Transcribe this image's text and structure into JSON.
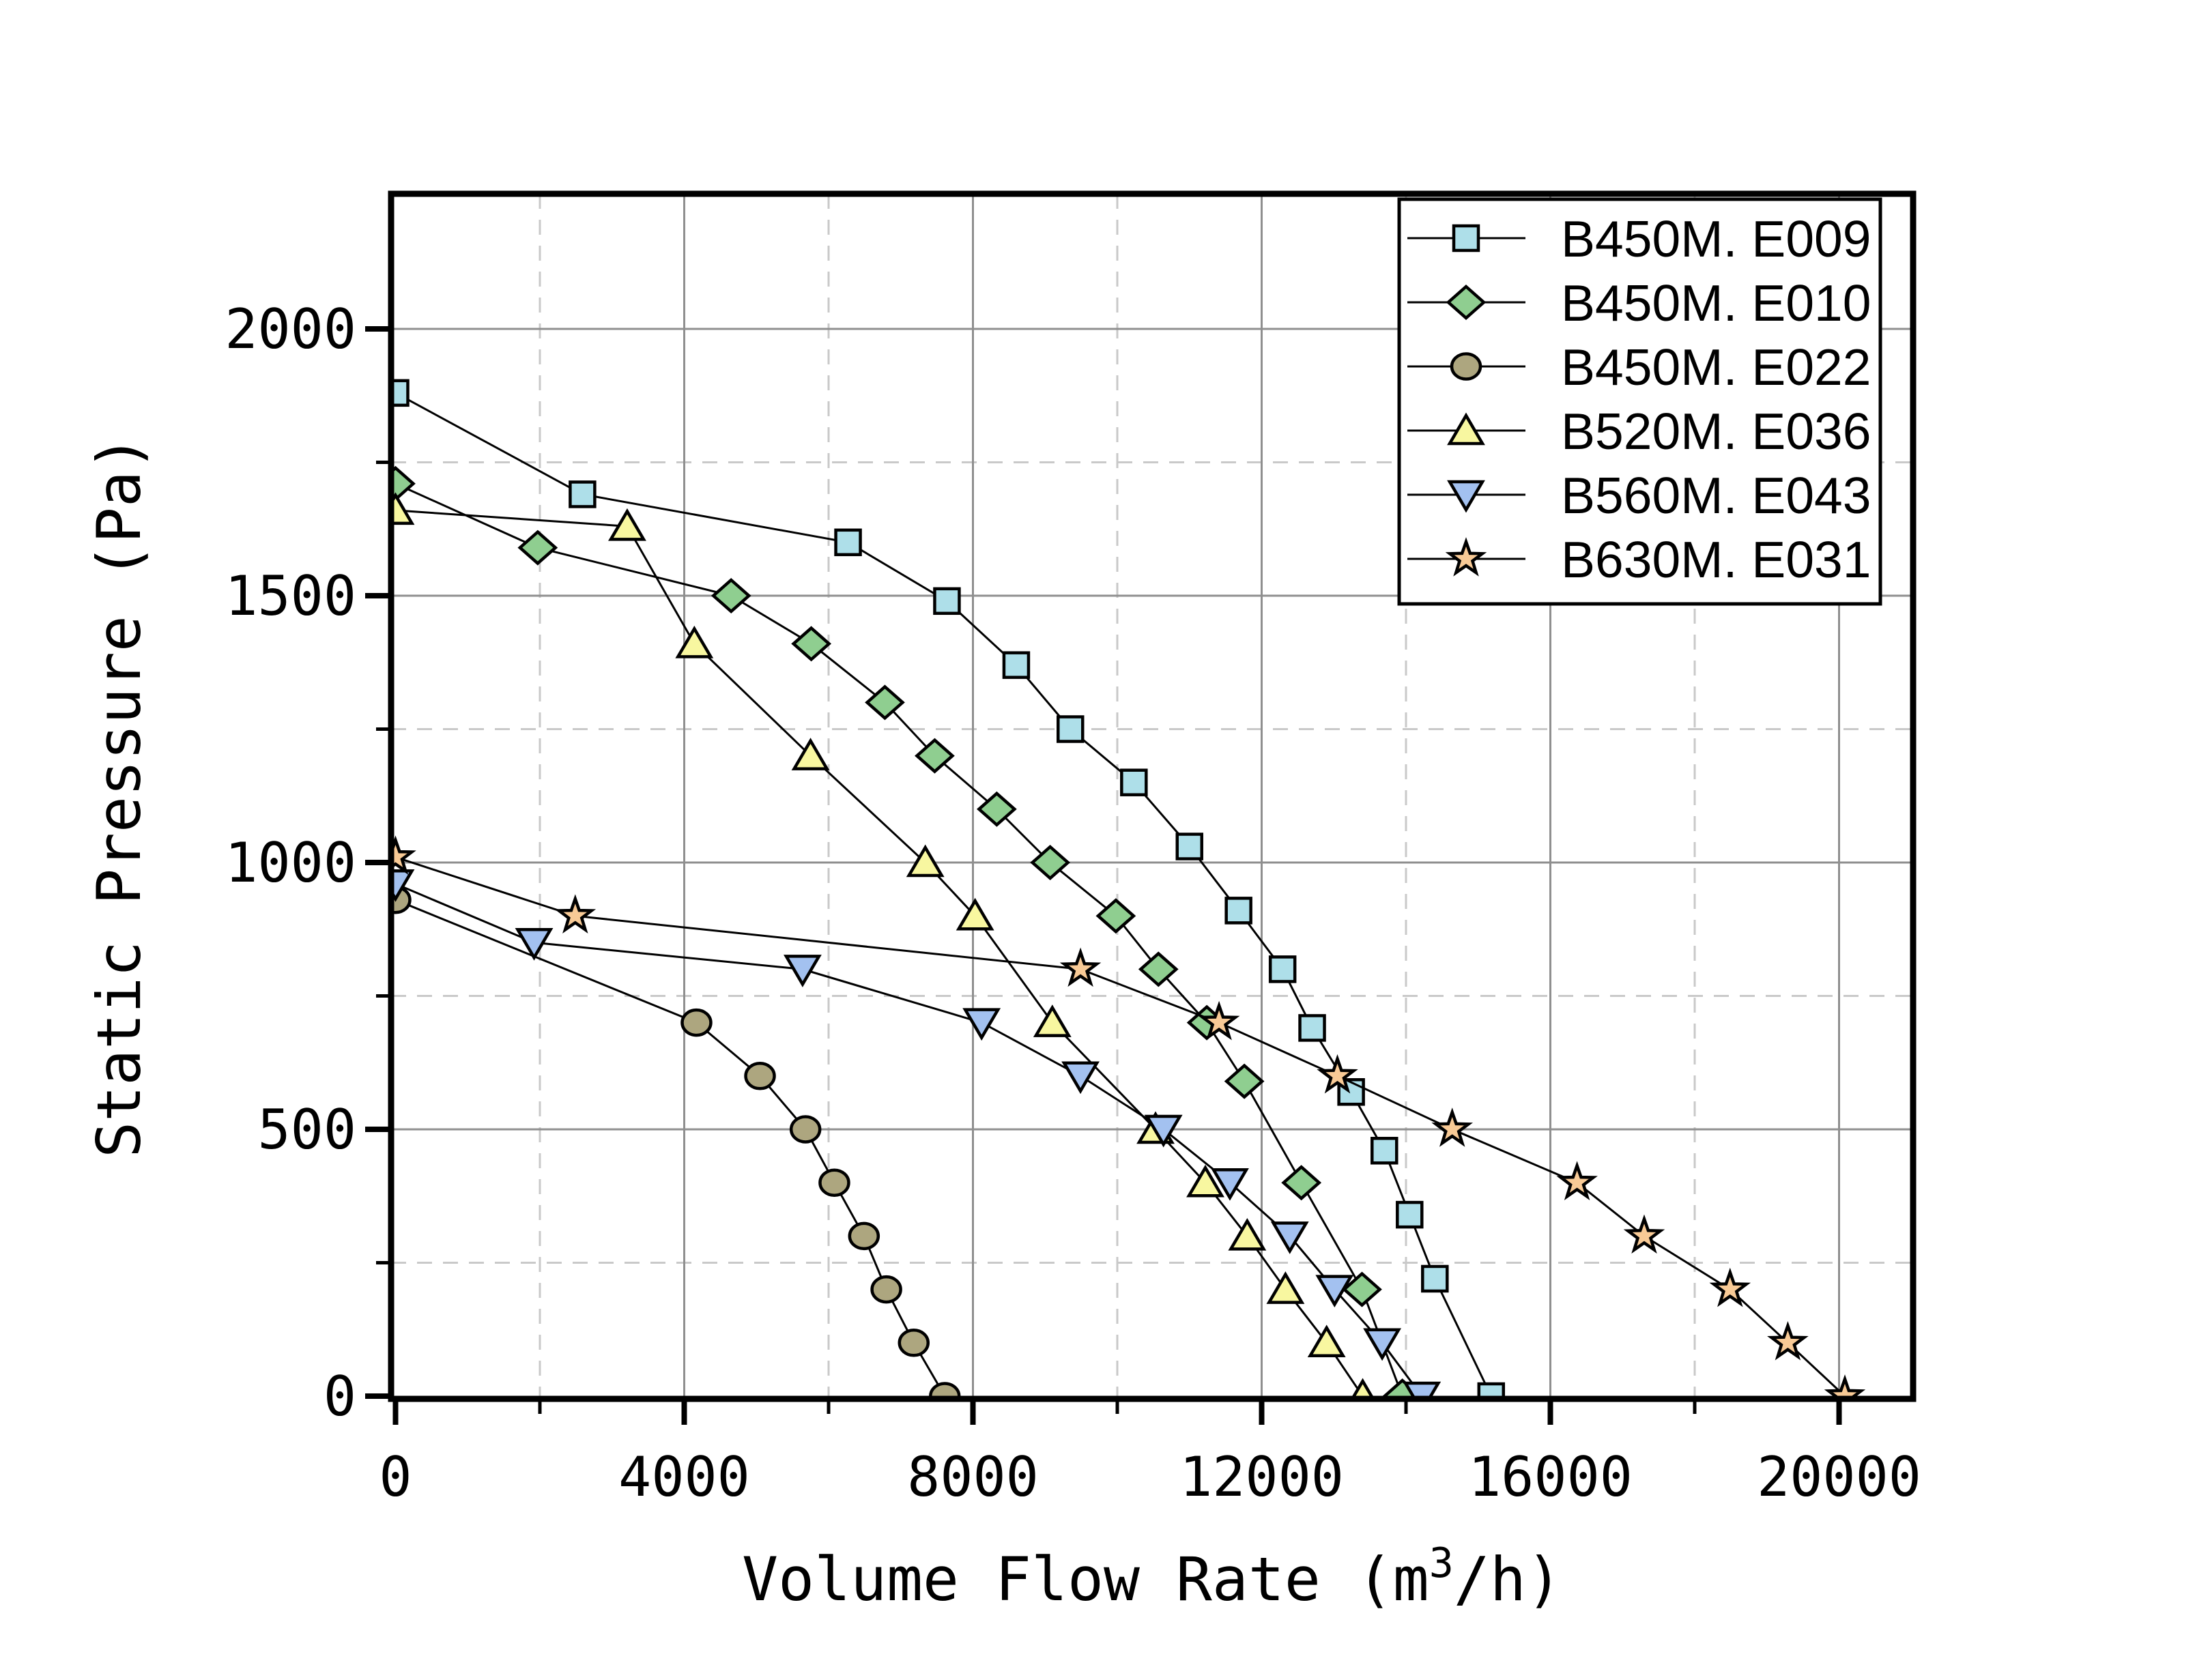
{
  "chart_data": {
    "type": "line",
    "title": "",
    "xlabel": "Volume Flow Rate (m³/h)",
    "xlabel_pre": "Volume Flow Rate (m",
    "xlabel_sup": "3",
    "xlabel_post": "/h)",
    "ylabel": "Static Pressure (Pa)",
    "xlim": [
      0,
      21000
    ],
    "ylim": [
      0,
      2250
    ],
    "x_major_ticks": [
      0,
      4000,
      8000,
      12000,
      16000,
      20000
    ],
    "x_minor_ticks": [
      2000,
      6000,
      10000,
      14000,
      18000
    ],
    "y_major_ticks": [
      0,
      500,
      1000,
      1500,
      2000
    ],
    "y_minor_ticks": [
      250,
      750,
      1250,
      1750
    ],
    "grid": {
      "major": "solid",
      "minor": "dashed",
      "major_color": "#8f8f8f",
      "minor_color": "#c9c9c9"
    },
    "legend_position": "top-right",
    "line_color": "#000000",
    "series": [
      {
        "name": "B450M. E009",
        "marker": "square",
        "color": "#AEDFE9",
        "points": [
          [
            0,
            1880
          ],
          [
            2590,
            1690
          ],
          [
            6270,
            1600
          ],
          [
            7640,
            1490
          ],
          [
            8600,
            1370
          ],
          [
            9350,
            1250
          ],
          [
            10230,
            1150
          ],
          [
            11000,
            1030
          ],
          [
            11680,
            910
          ],
          [
            12290,
            800
          ],
          [
            12700,
            690
          ],
          [
            13240,
            570
          ],
          [
            13700,
            460
          ],
          [
            14050,
            340
          ],
          [
            14400,
            220
          ],
          [
            15180,
            0
          ]
        ]
      },
      {
        "name": "B450M. E010",
        "marker": "diamond",
        "color": "#8FCE90",
        "points": [
          [
            0,
            1710
          ],
          [
            1970,
            1590
          ],
          [
            4650,
            1500
          ],
          [
            5760,
            1410
          ],
          [
            6780,
            1300
          ],
          [
            7470,
            1200
          ],
          [
            8330,
            1100
          ],
          [
            9070,
            1000
          ],
          [
            9980,
            900
          ],
          [
            10570,
            800
          ],
          [
            11240,
            700
          ],
          [
            11760,
            590
          ],
          [
            12550,
            400
          ],
          [
            13390,
            200
          ],
          [
            13950,
            0
          ]
        ]
      },
      {
        "name": "B450M. E022",
        "marker": "circle",
        "color": "#ADA67F",
        "points": [
          [
            0,
            930
          ],
          [
            4170,
            700
          ],
          [
            5050,
            600
          ],
          [
            5680,
            500
          ],
          [
            6080,
            400
          ],
          [
            6490,
            300
          ],
          [
            6800,
            200
          ],
          [
            7180,
            100
          ],
          [
            7610,
            0
          ]
        ]
      },
      {
        "name": "B520M. E036",
        "marker": "triangle-up",
        "color": "#F8F7A0",
        "points": [
          [
            0,
            1660
          ],
          [
            3210,
            1630
          ],
          [
            4140,
            1410
          ],
          [
            5750,
            1200
          ],
          [
            7340,
            1000
          ],
          [
            8030,
            900
          ],
          [
            9100,
            700
          ],
          [
            10530,
            500
          ],
          [
            11220,
            400
          ],
          [
            11800,
            300
          ],
          [
            12330,
            200
          ],
          [
            12900,
            100
          ],
          [
            13400,
            0
          ]
        ]
      },
      {
        "name": "B560M. E043",
        "marker": "triangle-down",
        "color": "#A3C1F0",
        "points": [
          [
            0,
            960
          ],
          [
            1920,
            850
          ],
          [
            5640,
            800
          ],
          [
            8120,
            700
          ],
          [
            9490,
            600
          ],
          [
            10640,
            500
          ],
          [
            11560,
            400
          ],
          [
            12390,
            300
          ],
          [
            13010,
            200
          ],
          [
            13670,
            100
          ],
          [
            14220,
            0
          ]
        ]
      },
      {
        "name": "B630M. E031",
        "marker": "star",
        "color": "#F8CA96",
        "points": [
          [
            0,
            1010
          ],
          [
            2490,
            900
          ],
          [
            9490,
            800
          ],
          [
            11410,
            700
          ],
          [
            13050,
            600
          ],
          [
            14640,
            500
          ],
          [
            16370,
            400
          ],
          [
            17300,
            300
          ],
          [
            18490,
            200
          ],
          [
            19290,
            100
          ],
          [
            20080,
            0
          ]
        ]
      }
    ]
  }
}
